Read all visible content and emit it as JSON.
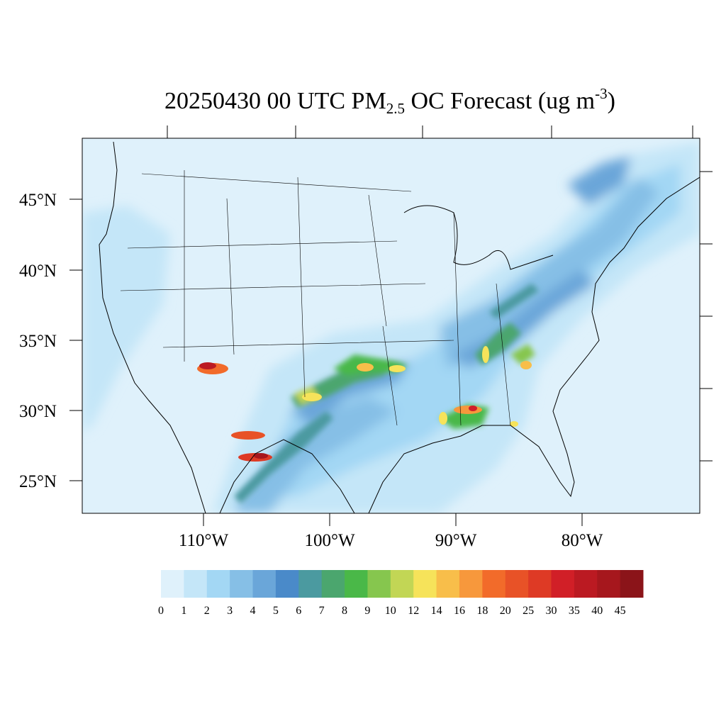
{
  "title": {
    "prefix": "20250430 00 UTC PM",
    "subscript": "2.5",
    "middle": " OC Forecast (ug m",
    "superscript": "-3",
    "suffix": ")"
  },
  "map": {
    "lat_ticks": [
      "45°N",
      "40°N",
      "35°N",
      "30°N",
      "25°N"
    ],
    "lon_ticks": [
      "110°W",
      "100°W",
      "90°W",
      "80°W"
    ]
  },
  "colorbar": {
    "levels": [
      "0",
      "1",
      "2",
      "3",
      "4",
      "5",
      "6",
      "7",
      "8",
      "9",
      "10",
      "12",
      "14",
      "16",
      "18",
      "20",
      "25",
      "30",
      "35",
      "40",
      "45"
    ],
    "colors": [
      "#dff1fb",
      "#c4e6f8",
      "#a3d7f4",
      "#86bfe6",
      "#6aa6d9",
      "#4a8ac9",
      "#4b9aa0",
      "#4ba66e",
      "#4ab848",
      "#86c64e",
      "#c2d655",
      "#f6e35a",
      "#f8be4a",
      "#f7983c",
      "#f26b2a",
      "#e85227",
      "#de3a25",
      "#d11f27",
      "#bb1a22",
      "#a6171d",
      "#8b1419"
    ]
  }
}
